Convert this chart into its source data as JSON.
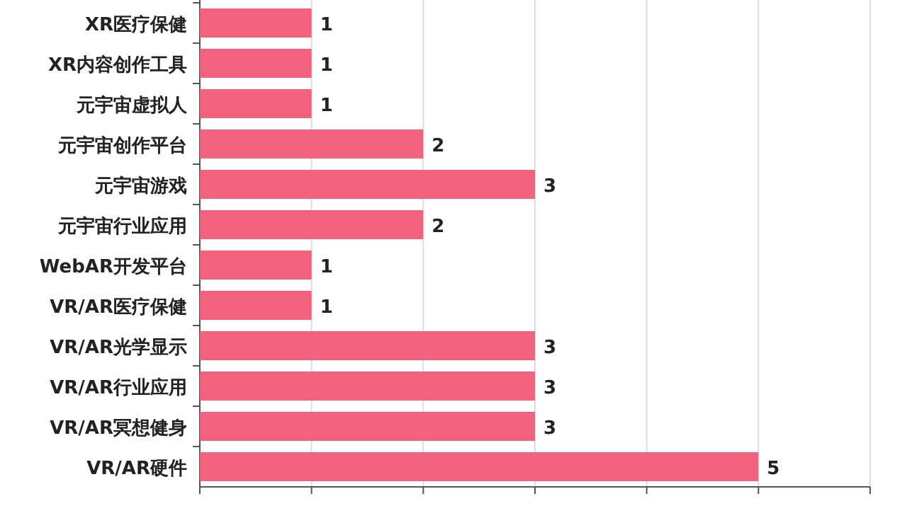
{
  "chart_data": {
    "type": "bar",
    "orientation": "horizontal",
    "categories": [
      "XR医疗保健",
      "XR内容创作工具",
      "元宇宙虚拟人",
      "元宇宙创作平台",
      "元宇宙游戏",
      "元宇宙行业应用",
      "WebAR开发平台",
      "VR/AR医疗保健",
      "VR/AR光学显示",
      "VR/AR行业应用",
      "VR/AR冥想健身",
      "VR/AR硬件"
    ],
    "values": [
      1,
      1,
      1,
      2,
      3,
      2,
      1,
      1,
      3,
      3,
      3,
      5
    ],
    "color": "#f2617e",
    "data_labels": true,
    "grid": "x",
    "tick_labels": "y",
    "xlim": [
      0,
      6
    ],
    "xticks": [
      {
        "value": 0,
        "label": null
      },
      {
        "value": 1,
        "label": null
      },
      {
        "value": 2,
        "label": null
      },
      {
        "value": 3,
        "label": null
      },
      {
        "value": 4,
        "label": null
      },
      {
        "value": 5,
        "label": null
      },
      {
        "value": 6,
        "label": null
      }
    ]
  }
}
